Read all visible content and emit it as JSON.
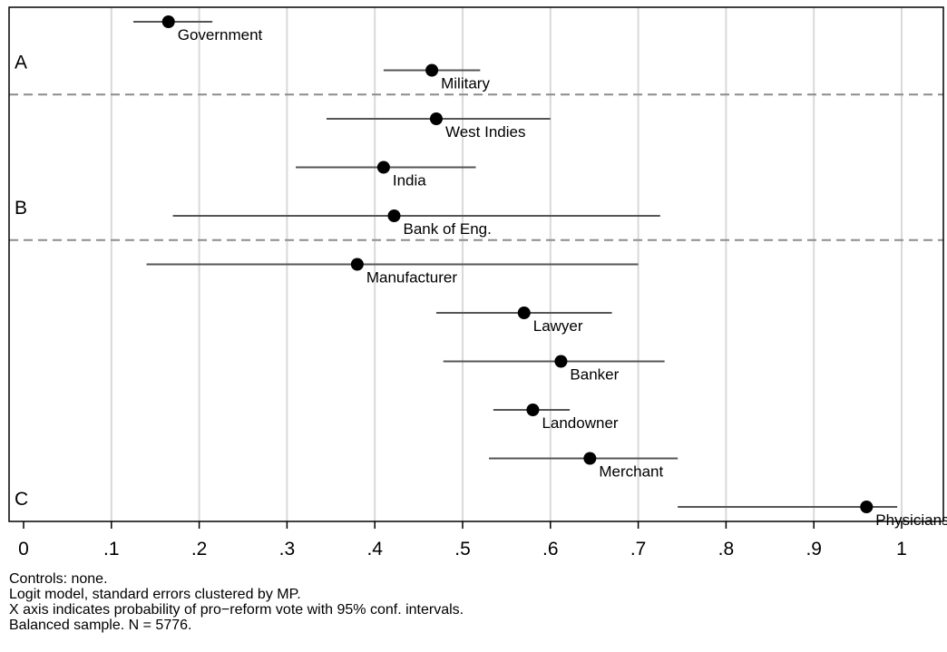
{
  "chart_data": {
    "type": "scatter",
    "xlim": [
      0,
      1
    ],
    "x_ticks": [
      "0",
      ".1",
      ".2",
      ".3",
      ".4",
      ".5",
      ".6",
      ".7",
      ".8",
      ".9",
      "1"
    ],
    "x_tick_values": [
      0,
      0.1,
      0.2,
      0.3,
      0.4,
      0.5,
      0.6,
      0.7,
      0.8,
      0.9,
      1.0
    ],
    "grid": true,
    "groups": [
      {
        "label": "A"
      },
      {
        "label": "B"
      },
      {
        "label": "C"
      }
    ],
    "points": [
      {
        "label": "Government",
        "group": "A",
        "estimate": 0.165,
        "ci_low": 0.125,
        "ci_high": 0.215
      },
      {
        "label": "Military",
        "group": "A",
        "estimate": 0.465,
        "ci_low": 0.41,
        "ci_high": 0.52
      },
      {
        "label": "West Indies",
        "group": "B",
        "estimate": 0.47,
        "ci_low": 0.345,
        "ci_high": 0.6
      },
      {
        "label": "India",
        "group": "B",
        "estimate": 0.41,
        "ci_low": 0.31,
        "ci_high": 0.515
      },
      {
        "label": "Bank of Eng.",
        "group": "B",
        "estimate": 0.422,
        "ci_low": 0.17,
        "ci_high": 0.725
      },
      {
        "label": "Manufacturer",
        "group": "C",
        "estimate": 0.38,
        "ci_low": 0.14,
        "ci_high": 0.7
      },
      {
        "label": "Lawyer",
        "group": "C",
        "estimate": 0.57,
        "ci_low": 0.47,
        "ci_high": 0.67
      },
      {
        "label": "Banker",
        "group": "C",
        "estimate": 0.612,
        "ci_low": 0.478,
        "ci_high": 0.73
      },
      {
        "label": "Landowner",
        "group": "C",
        "estimate": 0.58,
        "ci_low": 0.535,
        "ci_high": 0.622
      },
      {
        "label": "Merchant",
        "group": "C",
        "estimate": 0.645,
        "ci_low": 0.53,
        "ci_high": 0.745
      },
      {
        "label": "Physicians",
        "group": "C",
        "estimate": 0.96,
        "ci_low": 0.745,
        "ci_high": 0.995
      }
    ]
  },
  "notes": [
    "Controls: none.",
    "Logit model, standard errors clustered by MP.",
    "X axis indicates probability of pro−reform vote with 95% conf. intervals.",
    "Balanced sample. N = 5776."
  ],
  "colors": {
    "grid": "#d9d9d9",
    "ci_line": "#555555",
    "point": "#000000",
    "separator": "#8c8c8c",
    "frame": "#000000"
  }
}
